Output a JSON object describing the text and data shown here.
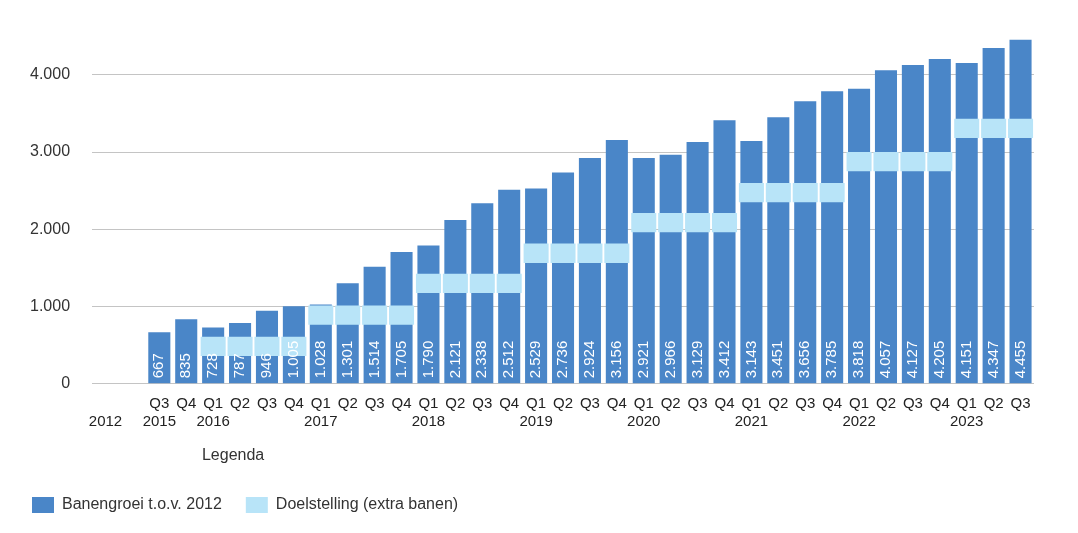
{
  "chart_data": {
    "type": "bar",
    "categories": [
      "\n2012",
      null,
      "Q3\n2015",
      "Q4",
      "Q1\n2016",
      "Q2",
      "Q3",
      "Q4",
      "Q1\n2017",
      "Q2",
      "Q3",
      "Q4",
      "Q1\n2018",
      "Q2",
      "Q3",
      "Q4",
      "Q1\n2019",
      "Q2",
      "Q3",
      "Q4",
      "Q1\n2020",
      "Q2",
      "Q3",
      "Q4",
      "Q1\n2021",
      "Q2",
      "Q3",
      "Q4",
      "Q1\n2022",
      "Q2",
      "Q3",
      "Q4",
      "Q1\n2023",
      "Q2",
      "Q3"
    ],
    "series": [
      {
        "name": "Banengroei t.o.v. 2012",
        "color": "#4a86c8",
        "values": [
          null,
          null,
          667,
          835,
          728,
          787,
          946,
          1005,
          1028,
          1301,
          1514,
          1705,
          1790,
          2121,
          2338,
          2512,
          2529,
          2736,
          2924,
          3156,
          2921,
          2966,
          3129,
          3412,
          3143,
          3451,
          3656,
          3785,
          3818,
          4057,
          4127,
          4205,
          4151,
          4347,
          4455
        ],
        "value_labels": [
          null,
          null,
          "667",
          "835",
          "728",
          "787",
          "946",
          "1.005",
          "1.028",
          "1.301",
          "1.514",
          "1.705",
          "1.790",
          "2.121",
          "2.338",
          "2.512",
          "2.529",
          "2.736",
          "2.924",
          "3.156",
          "2.921",
          "2.966",
          "3.129",
          "3.412",
          "3.143",
          "3.451",
          "3.656",
          "3.785",
          "3.818",
          "4.057",
          "4.127",
          "4.205",
          "4.151",
          "4.347",
          "4.455"
        ]
      },
      {
        "name": "Doelstelling (extra banen)",
        "color": "#b8e4f8",
        "values": [
          null,
          null,
          null,
          null,
          250,
          250,
          250,
          250,
          250,
          250,
          250,
          250,
          250,
          250,
          250,
          250,
          250,
          250,
          250,
          250,
          250,
          250,
          250,
          250,
          250,
          250,
          250,
          250,
          250,
          250,
          250,
          250,
          250,
          250,
          250
        ],
        "base": [
          null,
          null,
          null,
          null,
          360,
          360,
          360,
          360,
          765,
          765,
          765,
          765,
          1175,
          1175,
          1175,
          1175,
          1565,
          1565,
          1565,
          1565,
          1960,
          1960,
          1960,
          1960,
          2350,
          2350,
          2350,
          2350,
          2750,
          2750,
          2750,
          2750,
          3180,
          3180,
          3180
        ]
      }
    ],
    "ylim": [
      0,
      4455
    ],
    "yticks": [
      {
        "value": 0,
        "label": "0"
      },
      {
        "value": 1000,
        "label": "1.000"
      },
      {
        "value": 2000,
        "label": "2.000"
      },
      {
        "value": 3000,
        "label": "3.000"
      },
      {
        "value": 4000,
        "label": "4.000"
      }
    ],
    "grid": "y",
    "legend": "bottom",
    "legend_title": "Legenda"
  }
}
